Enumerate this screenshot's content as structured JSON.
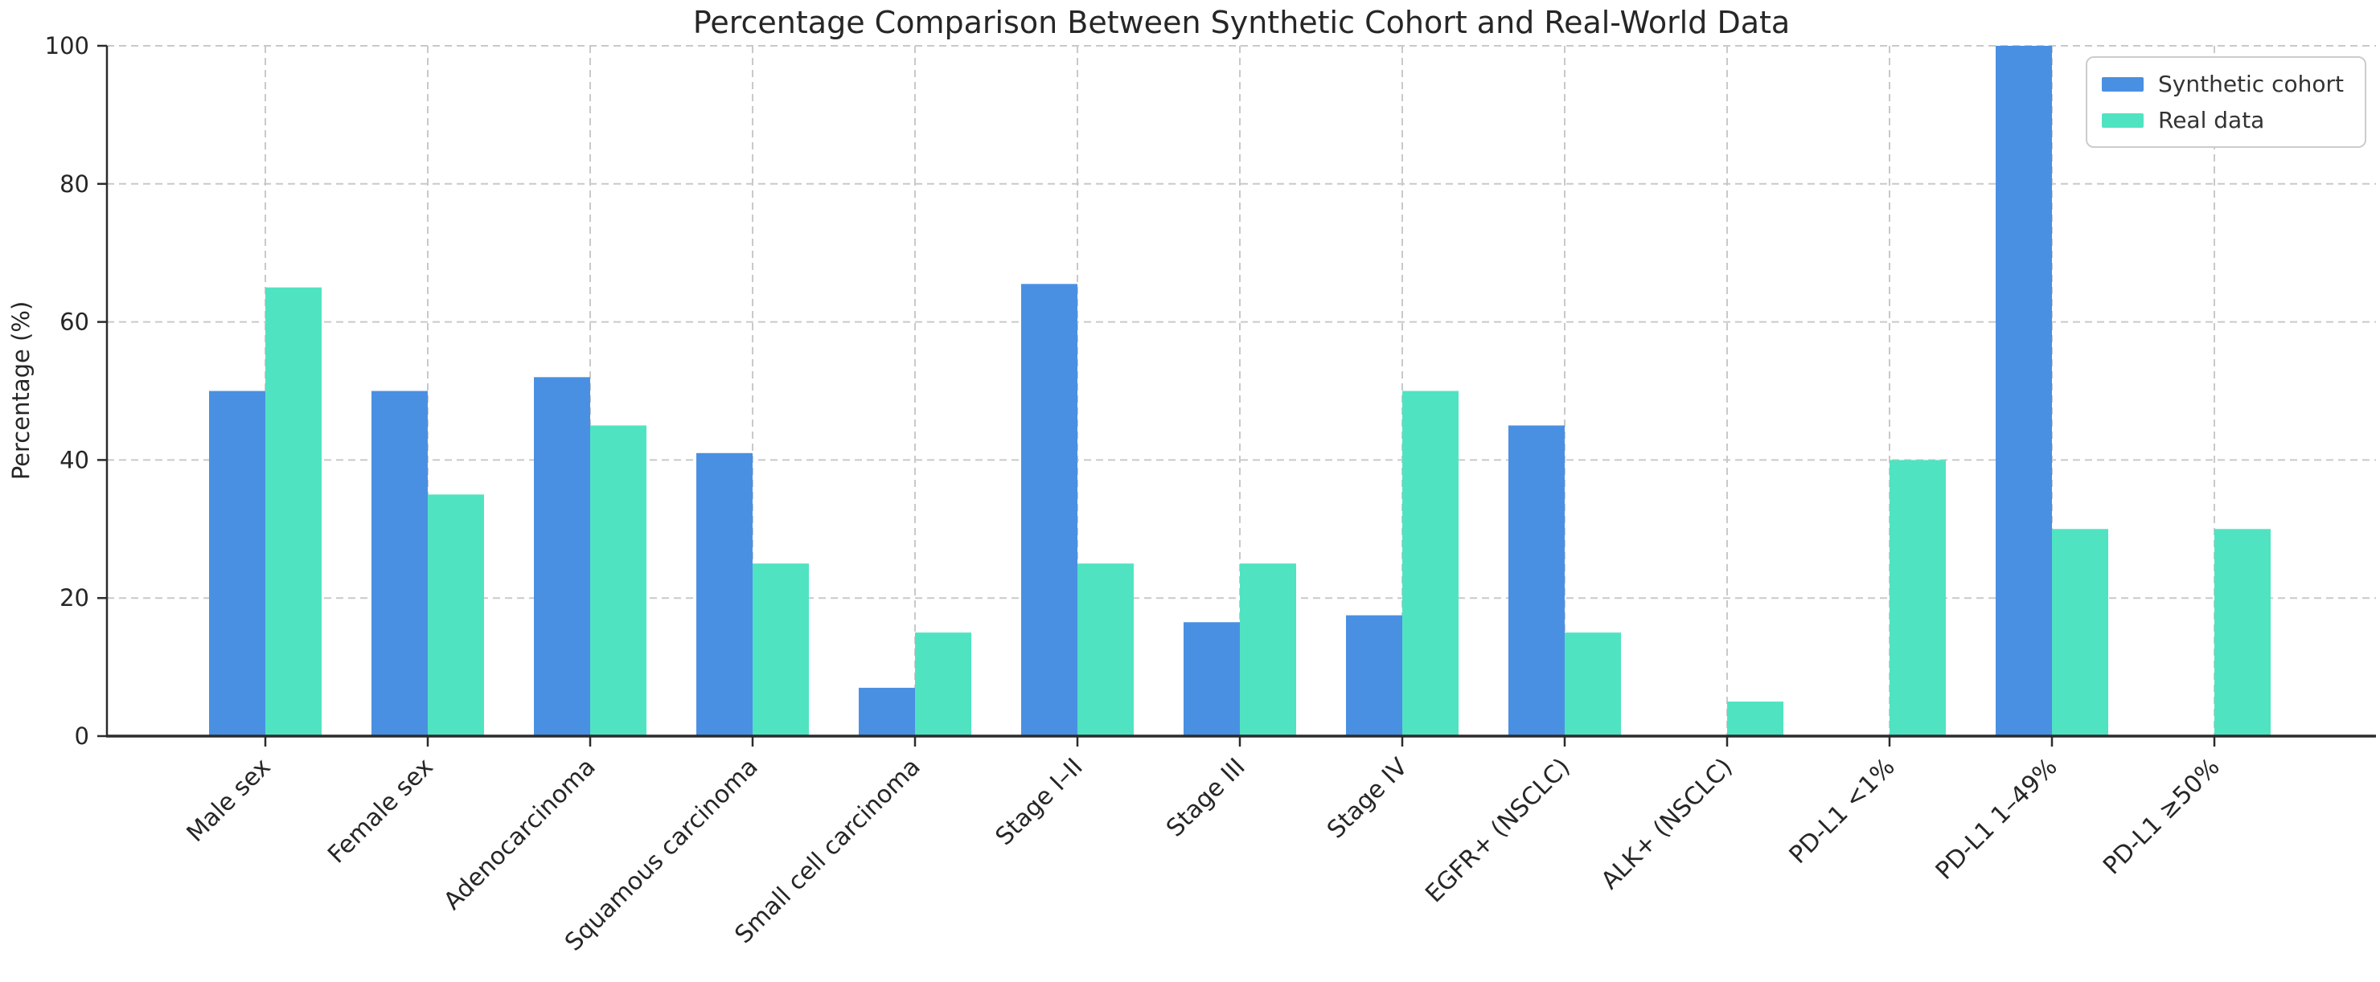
{
  "title": "Percentage Comparison Between Synthetic Cohort and Real-World Data",
  "colors": {
    "synthetic": "#4a90e2",
    "real": "#50e3c2",
    "grid": "#c9c9c9",
    "axis": "#2b2b2b",
    "text": "#262626",
    "legend_border": "#cccccc",
    "background": "#ffffff"
  },
  "chart_data": {
    "type": "bar",
    "title": "Percentage Comparison Between Synthetic Cohort and Real-World Data",
    "xlabel": "",
    "ylabel": "Percentage (%)",
    "ylim": [
      0,
      100
    ],
    "yticks": [
      0,
      20,
      40,
      60,
      80,
      100
    ],
    "grid": "dashed light-gray gridlines, horizontal and vertical",
    "legend_position": "upper right",
    "x_tick_rotation": 45,
    "categories": [
      "Male sex",
      "Female sex",
      "Adenocarcinoma",
      "Squamous carcinoma",
      "Small cell carcinoma",
      "Stage I–II",
      "Stage III",
      "Stage IV",
      "EGFR+ (NSCLC)",
      "ALK+ (NSCLC)",
      "PD-L1 <1%",
      "PD-L1 1–49%",
      "PD-L1 ≥50%"
    ],
    "series": [
      {
        "name": "Synthetic cohort",
        "color": "#4a90e2",
        "values": [
          50,
          50,
          52,
          41,
          7,
          65.5,
          16.5,
          17.5,
          45,
          0,
          0,
          100,
          0
        ]
      },
      {
        "name": "Real data",
        "color": "#50e3c2",
        "values": [
          65,
          35,
          45,
          25,
          15,
          25,
          25,
          50,
          15,
          5,
          40,
          30,
          30
        ]
      }
    ]
  }
}
